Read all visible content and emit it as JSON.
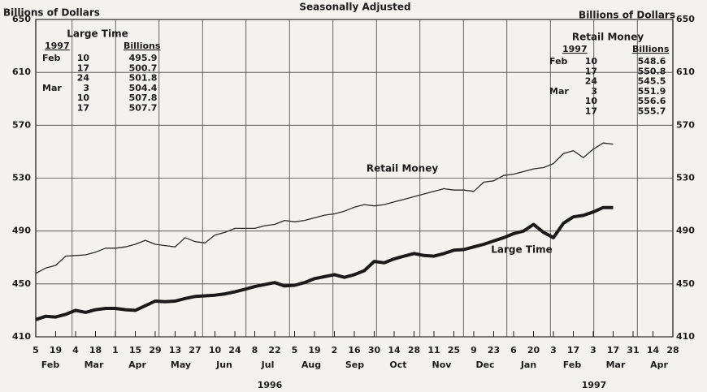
{
  "chart_data": {
    "type": "line",
    "title": "Seasonally Adjusted",
    "ylabel": "Billions of Dollars",
    "y2label": "Billions of Dollars",
    "ylim": [
      410,
      650
    ],
    "yticks": [
      410,
      450,
      490,
      530,
      570,
      610,
      650
    ],
    "xlim": [
      0,
      64
    ],
    "xticks": [
      {
        "value": 0,
        "label": "5"
      },
      {
        "value": 2,
        "label": "19"
      },
      {
        "value": 4,
        "label": "4"
      },
      {
        "value": 6,
        "label": "18"
      },
      {
        "value": 8,
        "label": "1"
      },
      {
        "value": 10,
        "label": "15"
      },
      {
        "value": 12,
        "label": "29"
      },
      {
        "value": 14,
        "label": "13"
      },
      {
        "value": 16,
        "label": "27"
      },
      {
        "value": 18,
        "label": "10"
      },
      {
        "value": 20,
        "label": "24"
      },
      {
        "value": 22,
        "label": "8"
      },
      {
        "value": 24,
        "label": "22"
      },
      {
        "value": 26,
        "label": "5"
      },
      {
        "value": 28,
        "label": "19"
      },
      {
        "value": 30,
        "label": "2"
      },
      {
        "value": 32,
        "label": "16"
      },
      {
        "value": 34,
        "label": "30"
      },
      {
        "value": 36,
        "label": "14"
      },
      {
        "value": 38,
        "label": "28"
      },
      {
        "value": 40,
        "label": "11"
      },
      {
        "value": 42,
        "label": "25"
      },
      {
        "value": 44,
        "label": "9"
      },
      {
        "value": 46,
        "label": "23"
      },
      {
        "value": 48,
        "label": "6"
      },
      {
        "value": 50,
        "label": "20"
      },
      {
        "value": 52,
        "label": "3"
      },
      {
        "value": 54,
        "label": "17"
      },
      {
        "value": 56,
        "label": "3"
      },
      {
        "value": 58,
        "label": "17"
      },
      {
        "value": 60,
        "label": "31"
      },
      {
        "value": 62,
        "label": "14"
      },
      {
        "value": 64,
        "label": "28"
      }
    ],
    "months": [
      "Feb",
      "Mar",
      "Apr",
      "May",
      "Jun",
      "Jul",
      "Aug",
      "Sep",
      "Oct",
      "Nov",
      "Dec",
      "Jan",
      "Feb",
      "Mar",
      "Apr"
    ],
    "years": [
      "1996",
      "1997"
    ],
    "grid": true,
    "series": [
      {
        "name": "Retail Money",
        "color": "#2a2a2a",
        "width": 1.3,
        "values": [
          458,
          462,
          464,
          471,
          471.5,
          472,
          474,
          477,
          477,
          478,
          480,
          483,
          480,
          479,
          478,
          485,
          482,
          481,
          487,
          489,
          492,
          492,
          492,
          494,
          495,
          498,
          497,
          498,
          500,
          502,
          503,
          505,
          508,
          510,
          509,
          510,
          512,
          514,
          516,
          518,
          520,
          522,
          521,
          521,
          520,
          527,
          528,
          532,
          533,
          535,
          537,
          538,
          541,
          548.6,
          550.8,
          545.5,
          551.9,
          556.6,
          555.7
        ]
      },
      {
        "name": "Large Time",
        "color": "#1a1a1a",
        "width": 4,
        "values": [
          423,
          425.5,
          425,
          427,
          430,
          428.5,
          430.5,
          431.5,
          431.5,
          430.5,
          430,
          433.5,
          437,
          436.5,
          437,
          439,
          440.5,
          441,
          441.5,
          442.5,
          444,
          446,
          448,
          449.5,
          451,
          448.5,
          449,
          451,
          454,
          455.5,
          457,
          455,
          457,
          460,
          467,
          466,
          469,
          471,
          473,
          471.5,
          471,
          473,
          475.5,
          476,
          478,
          480,
          482.5,
          485,
          488,
          490,
          495,
          489,
          485,
          495.9,
          500.7,
          501.8,
          504.4,
          507.8,
          507.7
        ]
      }
    ],
    "insets": [
      {
        "title": "Large Time",
        "year": "1997",
        "unit": "Billions",
        "rows": [
          {
            "month": "Feb",
            "day": 10,
            "value": 495.9
          },
          {
            "day": 17,
            "value": 500.7
          },
          {
            "day": 24,
            "value": 501.8
          },
          {
            "month": "Mar",
            "day": 3,
            "value": 504.4
          },
          {
            "day": 10,
            "value": 507.8
          },
          {
            "day": 17,
            "value": 507.7
          }
        ]
      },
      {
        "title": "Retail Money",
        "year": "1997",
        "unit": "Billions",
        "rows": [
          {
            "month": "Feb",
            "day": 10,
            "value": 548.6
          },
          {
            "day": 17,
            "value": 550.8
          },
          {
            "day": 24,
            "value": 545.5
          },
          {
            "month": "Mar",
            "day": 3,
            "value": 551.9
          },
          {
            "day": 10,
            "value": 556.6
          },
          {
            "day": 17,
            "value": 555.7
          }
        ]
      }
    ]
  }
}
